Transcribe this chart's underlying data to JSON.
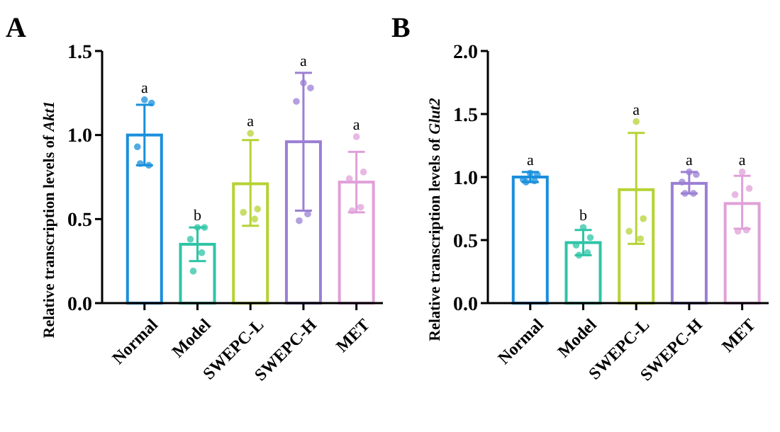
{
  "chart_data": [
    {
      "type": "bar",
      "title": "A",
      "ylabel": "Relative transcription levels of Akt1",
      "categories": [
        "Normal",
        "Model",
        "SWEPC-L",
        "SWEPC-H",
        "MET"
      ],
      "series": [
        {
          "type": "bar",
          "values": [
            1.0,
            0.35,
            0.71,
            0.96,
            0.72
          ],
          "colors": [
            "#1a8fdc",
            "#2ec4a6",
            "#b5d334",
            "#9b7fd4",
            "#e0a0d8"
          ],
          "errors": [
            [
              0.82,
              1.18
            ],
            [
              0.25,
              0.45
            ],
            [
              0.46,
              0.97
            ],
            [
              0.55,
              1.37
            ],
            [
              0.54,
              0.9
            ]
          ]
        },
        {
          "type": "scatter",
          "x": [
            "Normal",
            "Normal",
            "Normal",
            "Normal",
            "Normal",
            "Model",
            "Model",
            "Model",
            "Model",
            "Model",
            "SWEPC-L",
            "SWEPC-L",
            "SWEPC-L",
            "SWEPC-L",
            "SWEPC-H",
            "SWEPC-H",
            "SWEPC-H",
            "SWEPC-H",
            "SWEPC-H",
            "MET",
            "MET",
            "MET",
            "MET",
            "MET"
          ],
          "values": [
            1.21,
            1.19,
            0.93,
            0.82,
            0.83,
            0.45,
            0.45,
            0.38,
            0.3,
            0.19,
            1.01,
            0.56,
            0.54,
            0.5,
            1.31,
            1.28,
            1.2,
            0.53,
            0.49,
            0.99,
            0.78,
            0.74,
            0.57,
            0.55
          ],
          "colors": [
            "#1a8fdc",
            "#1a8fdc",
            "#1a8fdc",
            "#1a8fdc",
            "#1a8fdc",
            "#2ec4a6",
            "#2ec4a6",
            "#2ec4a6",
            "#2ec4a6",
            "#2ec4a6",
            "#b5d334",
            "#b5d334",
            "#b5d334",
            "#b5d334",
            "#9b7fd4",
            "#9b7fd4",
            "#9b7fd4",
            "#9b7fd4",
            "#9b7fd4",
            "#e0a0d8",
            "#e0a0d8",
            "#e0a0d8",
            "#e0a0d8",
            "#e0a0d8"
          ]
        }
      ],
      "ylim": [
        0,
        1.5
      ],
      "yticks": [
        {
          "value": 0,
          "label": "0.0"
        },
        {
          "value": 0.5,
          "label": "0.5"
        },
        {
          "value": 1,
          "label": "1.0"
        },
        {
          "value": 1.5,
          "label": "1.5"
        }
      ],
      "annotations": [
        {
          "text": "a",
          "x": "Normal",
          "y": 1.21
        },
        {
          "text": "b",
          "x": "Model",
          "y": 0.45
        },
        {
          "text": "a",
          "x": "SWEPC-L",
          "y": 1.01
        },
        {
          "text": "a",
          "x": "SWEPC-H",
          "y": 1.37
        },
        {
          "text": "a",
          "x": "MET",
          "y": 0.99
        }
      ]
    },
    {
      "type": "bar",
      "title": "B",
      "ylabel": "Relative transcription levels of Glut2",
      "categories": [
        "Normal",
        "Model",
        "SWEPC-L",
        "SWEPC-H",
        "MET"
      ],
      "series": [
        {
          "type": "bar",
          "values": [
            1.0,
            0.48,
            0.9,
            0.95,
            0.79
          ],
          "colors": [
            "#1a8fdc",
            "#2ec4a6",
            "#b5d334",
            "#9b7fd4",
            "#e0a0d8"
          ],
          "errors": [
            [
              0.96,
              1.04
            ],
            [
              0.38,
              0.58
            ],
            [
              0.47,
              1.35
            ],
            [
              0.87,
              1.04
            ],
            [
              0.59,
              1.01
            ]
          ]
        },
        {
          "type": "scatter",
          "x": [
            "Normal",
            "Normal",
            "Normal",
            "Normal",
            "Normal",
            "Model",
            "Model",
            "Model",
            "Model",
            "Model",
            "SWEPC-L",
            "SWEPC-L",
            "SWEPC-L",
            "SWEPC-L",
            "SWEPC-H",
            "SWEPC-H",
            "SWEPC-H",
            "SWEPC-H",
            "SWEPC-H",
            "MET",
            "MET",
            "MET",
            "MET",
            "MET"
          ],
          "values": [
            1.03,
            1.02,
            0.98,
            0.97,
            0.96,
            0.6,
            0.52,
            0.46,
            0.4,
            0.38,
            1.44,
            0.67,
            0.57,
            0.51,
            1.04,
            1.02,
            0.96,
            0.87,
            0.87,
            1.04,
            0.91,
            0.86,
            0.58,
            0.57
          ],
          "colors": [
            "#1a8fdc",
            "#1a8fdc",
            "#1a8fdc",
            "#1a8fdc",
            "#1a8fdc",
            "#2ec4a6",
            "#2ec4a6",
            "#2ec4a6",
            "#2ec4a6",
            "#2ec4a6",
            "#b5d334",
            "#b5d334",
            "#b5d334",
            "#b5d334",
            "#9b7fd4",
            "#9b7fd4",
            "#9b7fd4",
            "#9b7fd4",
            "#9b7fd4",
            "#e0a0d8",
            "#e0a0d8",
            "#e0a0d8",
            "#e0a0d8",
            "#e0a0d8"
          ]
        }
      ],
      "ylim": [
        0,
        2
      ],
      "yticks": [
        {
          "value": 0,
          "label": "0.0"
        },
        {
          "value": 0.5,
          "label": "0.5"
        },
        {
          "value": 1,
          "label": "1.0"
        },
        {
          "value": 1.5,
          "label": "1.5"
        },
        {
          "value": 2,
          "label": "2.0"
        }
      ],
      "annotations": [
        {
          "text": "a",
          "x": "Normal",
          "y": 1.04
        },
        {
          "text": "b",
          "x": "Model",
          "y": 0.6
        },
        {
          "text": "a",
          "x": "SWEPC-L",
          "y": 1.44
        },
        {
          "text": "a",
          "x": "SWEPC-H",
          "y": 1.04
        },
        {
          "text": "a",
          "x": "MET",
          "y": 1.04
        }
      ]
    }
  ]
}
